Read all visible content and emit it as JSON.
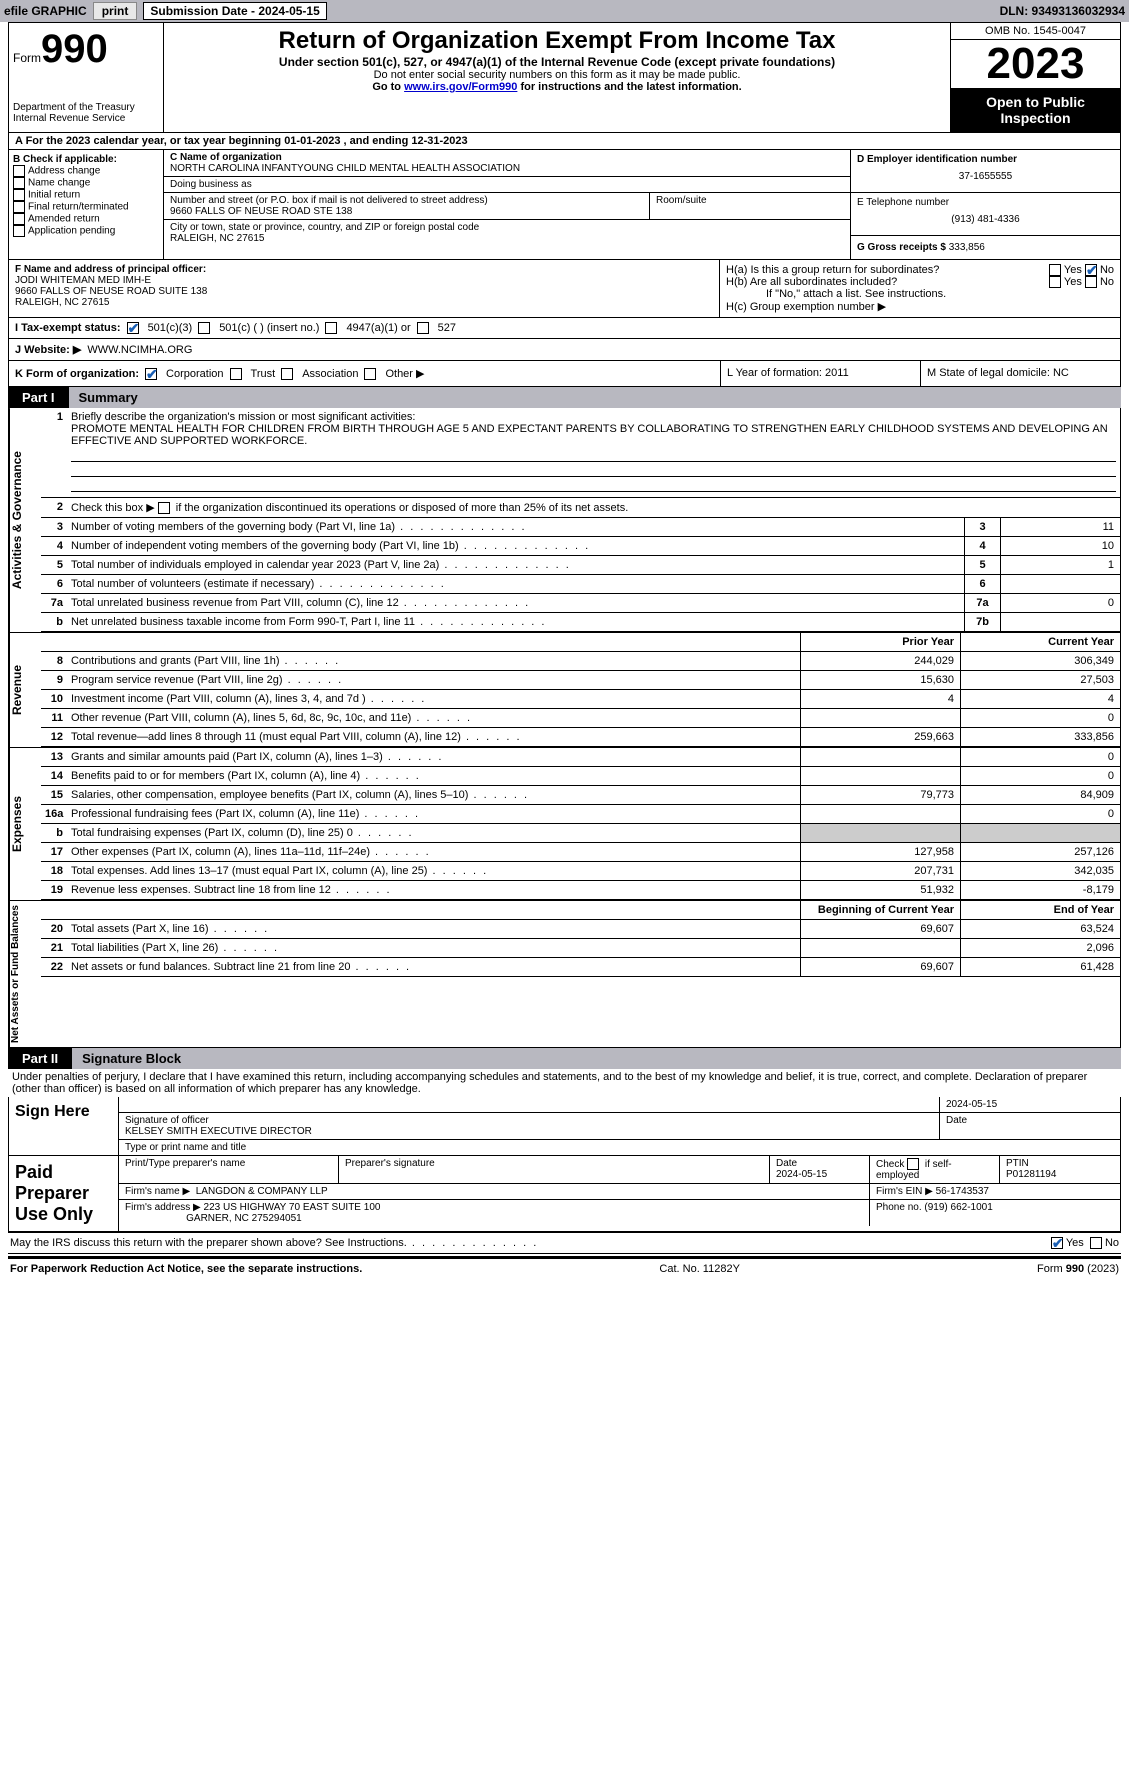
{
  "topbar": {
    "efile": "efile GRAPHIC",
    "print": "print",
    "sub_label": "Submission Date - 2024-05-15",
    "dln": "DLN: 93493136032934"
  },
  "header": {
    "form_label": "Form",
    "form_num": "990",
    "dept": "Department of the Treasury\nInternal Revenue Service",
    "title": "Return of Organization Exempt From Income Tax",
    "sub": "Under section 501(c), 527, or 4947(a)(1) of the Internal Revenue Code (except private foundations)",
    "note1": "Do not enter social security numbers on this form as it may be made public.",
    "note2_pre": "Go to ",
    "note2_link": "www.irs.gov/Form990",
    "note2_post": " for instructions and the latest information.",
    "omb": "OMB No. 1545-0047",
    "year": "2023",
    "open": "Open to Public Inspection"
  },
  "rowA": "A  For the 2023 calendar year, or tax year beginning 01-01-2023    , and ending 12-31-2023",
  "boxB": {
    "label": "B Check if applicable:",
    "items": [
      "Address change",
      "Name change",
      "Initial return",
      "Final return/terminated",
      "Amended return",
      "Application pending"
    ]
  },
  "boxC": {
    "name_label": "C Name of organization",
    "name": "NORTH CAROLINA INFANTYOUNG CHILD MENTAL HEALTH ASSOCIATION",
    "dba_label": "Doing business as",
    "dba": "",
    "addr_label": "Number and street (or P.O. box if mail is not delivered to street address)",
    "addr": "9660 FALLS OF NEUSE ROAD STE 138",
    "room_label": "Room/suite",
    "city_label": "City or town, state or province, country, and ZIP or foreign postal code",
    "city": "RALEIGH, NC  27615"
  },
  "boxD": {
    "label": "D Employer identification number",
    "val": "37-1655555"
  },
  "boxE": {
    "label": "E Telephone number",
    "val": "(913) 481-4336"
  },
  "boxG": {
    "label": "G Gross receipts $",
    "val": "333,856"
  },
  "boxF": {
    "label": "F  Name and address of principal officer:",
    "name": "JODI WHITEMAN MED IMH-E",
    "addr1": "9660 FALLS OF NEUSE ROAD SUITE 138",
    "addr2": "RALEIGH, NC  27615"
  },
  "boxH": {
    "a": "H(a)  Is this a group return for subordinates?",
    "b": "H(b)  Are all subordinates included?",
    "b_note": "If \"No,\" attach a list. See instructions.",
    "c": "H(c)  Group exemption number ▶",
    "yes": "Yes",
    "no": "No"
  },
  "rowI": {
    "label": "I   Tax-exempt status:",
    "o1": "501(c)(3)",
    "o2": "501(c) (  ) (insert no.)",
    "o3": "4947(a)(1) or",
    "o4": "527"
  },
  "rowJ": {
    "label": "J   Website: ▶",
    "val": "WWW.NCIMHA.ORG"
  },
  "rowK": {
    "label": "K Form of organization:",
    "o1": "Corporation",
    "o2": "Trust",
    "o3": "Association",
    "o4": "Other ▶"
  },
  "rowL": {
    "label": "L Year of formation: 2011"
  },
  "rowM": {
    "label": "M State of legal domicile: NC"
  },
  "part1": {
    "num": "Part I",
    "title": "Summary"
  },
  "summary": {
    "line1_label": "Briefly describe the organization's mission or most significant activities:",
    "line1_text": "PROMOTE MENTAL HEALTH FOR CHILDREN FROM BIRTH THROUGH AGE 5 AND EXPECTANT PARENTS BY COLLABORATING TO STRENGTHEN EARLY CHILDHOOD SYSTEMS AND DEVELOPING AN EFFECTIVE AND SUPPORTED WORKFORCE.",
    "line2": "Check this box ▶       if the organization discontinued its operations or disposed of more than 25% of its net assets.",
    "vtab1": "Activities & Governance",
    "vtab2": "Revenue",
    "vtab3": "Expenses",
    "vtab4": "Net Assets or Fund Balances",
    "rows_gov": [
      {
        "n": "3",
        "d": "Number of voting members of the governing body (Part VI, line 1a)",
        "box": "3",
        "v": "11"
      },
      {
        "n": "4",
        "d": "Number of independent voting members of the governing body (Part VI, line 1b)",
        "box": "4",
        "v": "10"
      },
      {
        "n": "5",
        "d": "Total number of individuals employed in calendar year 2023 (Part V, line 2a)",
        "box": "5",
        "v": "1"
      },
      {
        "n": "6",
        "d": "Total number of volunteers (estimate if necessary)",
        "box": "6",
        "v": ""
      },
      {
        "n": "7a",
        "d": "Total unrelated business revenue from Part VIII, column (C), line 12",
        "box": "7a",
        "v": "0"
      },
      {
        "n": "b",
        "d": "Net unrelated business taxable income from Form 990-T, Part I, line 11",
        "box": "7b",
        "v": ""
      }
    ],
    "hdr_py": "Prior Year",
    "hdr_cy": "Current Year",
    "rows_rev": [
      {
        "n": "8",
        "d": "Contributions and grants (Part VIII, line 1h)",
        "py": "244,029",
        "cy": "306,349"
      },
      {
        "n": "9",
        "d": "Program service revenue (Part VIII, line 2g)",
        "py": "15,630",
        "cy": "27,503"
      },
      {
        "n": "10",
        "d": "Investment income (Part VIII, column (A), lines 3, 4, and 7d )",
        "py": "4",
        "cy": "4"
      },
      {
        "n": "11",
        "d": "Other revenue (Part VIII, column (A), lines 5, 6d, 8c, 9c, 10c, and 11e)",
        "py": "",
        "cy": "0"
      },
      {
        "n": "12",
        "d": "Total revenue—add lines 8 through 11 (must equal Part VIII, column (A), line 12)",
        "py": "259,663",
        "cy": "333,856"
      }
    ],
    "rows_exp": [
      {
        "n": "13",
        "d": "Grants and similar amounts paid (Part IX, column (A), lines 1–3)",
        "py": "",
        "cy": "0"
      },
      {
        "n": "14",
        "d": "Benefits paid to or for members (Part IX, column (A), line 4)",
        "py": "",
        "cy": "0"
      },
      {
        "n": "15",
        "d": "Salaries, other compensation, employee benefits (Part IX, column (A), lines 5–10)",
        "py": "79,773",
        "cy": "84,909"
      },
      {
        "n": "16a",
        "d": "Professional fundraising fees (Part IX, column (A), line 11e)",
        "py": "",
        "cy": "0"
      },
      {
        "n": "b",
        "d": "Total fundraising expenses (Part IX, column (D), line 25) 0",
        "py": "shade",
        "cy": "shade"
      },
      {
        "n": "17",
        "d": "Other expenses (Part IX, column (A), lines 11a–11d, 11f–24e)",
        "py": "127,958",
        "cy": "257,126"
      },
      {
        "n": "18",
        "d": "Total expenses. Add lines 13–17 (must equal Part IX, column (A), line 25)",
        "py": "207,731",
        "cy": "342,035"
      },
      {
        "n": "19",
        "d": "Revenue less expenses. Subtract line 18 from line 12",
        "py": "51,932",
        "cy": "-8,179"
      }
    ],
    "hdr_boy": "Beginning of Current Year",
    "hdr_eoy": "End of Year",
    "rows_na": [
      {
        "n": "20",
        "d": "Total assets (Part X, line 16)",
        "py": "69,607",
        "cy": "63,524"
      },
      {
        "n": "21",
        "d": "Total liabilities (Part X, line 26)",
        "py": "",
        "cy": "2,096"
      },
      {
        "n": "22",
        "d": "Net assets or fund balances. Subtract line 21 from line 20",
        "py": "69,607",
        "cy": "61,428"
      }
    ]
  },
  "part2": {
    "num": "Part II",
    "title": "Signature Block"
  },
  "sig": {
    "penalty": "Under penalties of perjury, I declare that I have examined this return, including accompanying schedules and statements, and to the best of my knowledge and belief, it is true, correct, and complete. Declaration of preparer (other than officer) is based on all information of which preparer has any knowledge.",
    "sign_here": "Sign Here",
    "sig_officer": "Signature of officer",
    "officer_name": "KELSEY SMITH  EXECUTIVE DIRECTOR",
    "type_name": "Type or print name and title",
    "date_lbl": "Date",
    "date_val": "2024-05-15",
    "paid": "Paid Preparer Use Only",
    "prep_name_lbl": "Print/Type preparer's name",
    "prep_sig_lbl": "Preparer's signature",
    "prep_date": "2024-05-15",
    "check_self": "Check         if self-employed",
    "ptin_lbl": "PTIN",
    "ptin": "P01281194",
    "firm_name_lbl": "Firm's name     ▶",
    "firm_name": "LANGDON & COMPANY LLP",
    "firm_ein_lbl": "Firm's EIN ▶",
    "firm_ein": "56-1743537",
    "firm_addr_lbl": "Firm's address ▶",
    "firm_addr1": "223 US HIGHWAY 70 EAST SUITE 100",
    "firm_addr2": "GARNER, NC  275294051",
    "phone_lbl": "Phone no.",
    "phone": "(919) 662-1001",
    "discuss": "May the IRS discuss this return with the preparer shown above? See Instructions."
  },
  "footer": {
    "pra": "For Paperwork Reduction Act Notice, see the separate instructions.",
    "cat": "Cat. No. 11282Y",
    "form": "Form 990 (2023)"
  }
}
